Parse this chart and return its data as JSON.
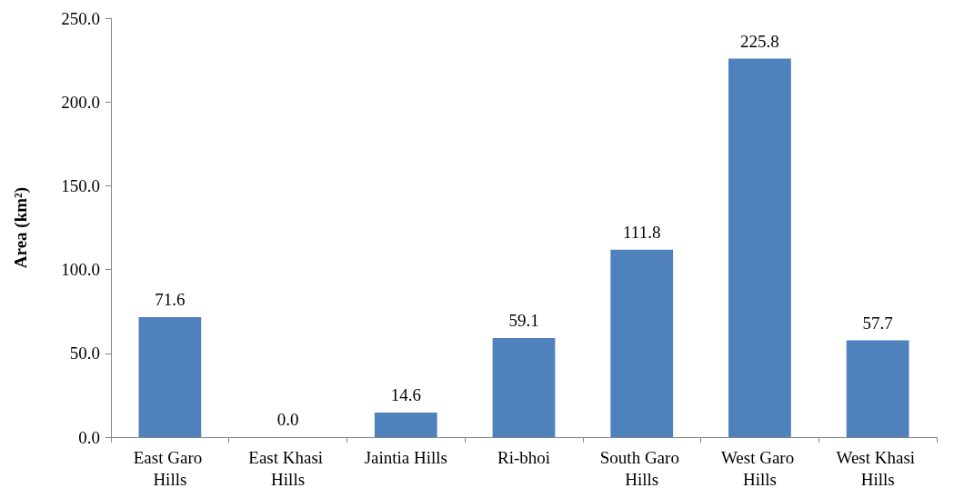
{
  "chart_data": {
    "type": "bar",
    "ylabel": "Area (km²)",
    "categories": [
      "East Garo Hills",
      "East Khasi Hills",
      "Jaintia Hills",
      "Ri-bhoi",
      "South Garo Hills",
      "West Garo Hills",
      "West Khasi Hills"
    ],
    "values": [
      71.6,
      0,
      14.6,
      59.1,
      111.8,
      225.8,
      57.7
    ],
    "value_labels": [
      "71.6",
      "0.0",
      "14.6",
      "59.1",
      "111.8",
      "225.8",
      "57.7"
    ],
    "color": "#4f81bd",
    "ylim": [
      0,
      250
    ],
    "yticks": [
      {
        "value": 0,
        "label": "0.0"
      },
      {
        "value": 50,
        "label": "50.0"
      },
      {
        "value": 100,
        "label": "100.0"
      },
      {
        "value": 150,
        "label": "150.0"
      },
      {
        "value": 200,
        "label": "200.0"
      },
      {
        "value": 250,
        "label": "250.0"
      }
    ],
    "grid": false
  }
}
